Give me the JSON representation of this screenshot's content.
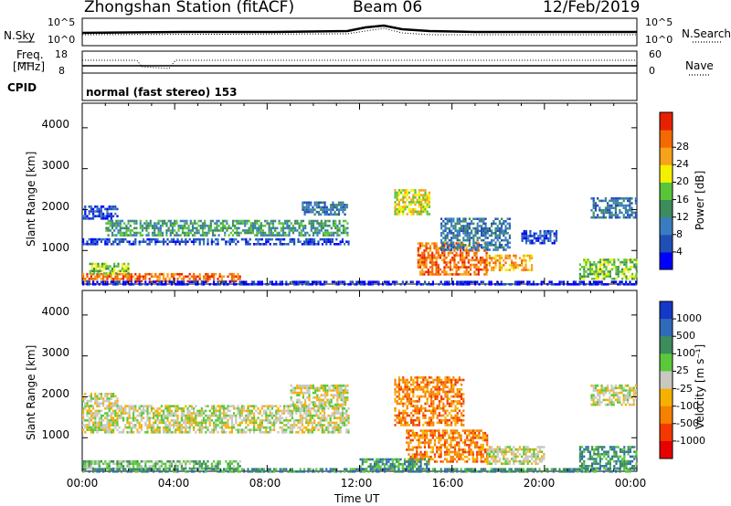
{
  "header": {
    "station": "Zhongshan Station (fitACF)",
    "beam": "Beam 06",
    "date": "12/Feb/2019"
  },
  "top_panels": {
    "nsky_label": "N.Sky",
    "nsky_ticks": [
      "10^5",
      "10^0"
    ],
    "nsearch_label": "N.Search",
    "nsearch_ticks": [
      "10^5",
      "10^0"
    ],
    "freq_label": "Freq.",
    "freq_unit": "[MHz]",
    "freq_ticks": [
      "18",
      "8"
    ],
    "nave_label": "Nave",
    "nave_ticks": [
      "60",
      "0"
    ],
    "cpid_label": "CPID",
    "cpid_text": "normal (fast stereo) 153"
  },
  "chart_data": [
    {
      "type": "heatmap",
      "name": "power-panel",
      "xlabel": "",
      "ylabel": "Slant Range [km]",
      "x_ticks": [
        "00:00",
        "04:00",
        "08:00",
        "12:00",
        "16:00",
        "20:00",
        "00:00"
      ],
      "y_ticks": [
        1000,
        2000,
        3000,
        4000
      ],
      "xlim": [
        0,
        24
      ],
      "ylim": [
        180,
        4600
      ],
      "colorbar": {
        "label": "Power [dB]",
        "ticks": [
          "4",
          "8",
          "12",
          "16",
          "20",
          "24",
          "28"
        ],
        "colors": [
          "#0000ff",
          "#1f4fb5",
          "#3a7cc0",
          "#3c8c5c",
          "#58c43a",
          "#f5f000",
          "#f6a21a",
          "#f46a00",
          "#e82000"
        ]
      },
      "regions": [
        {
          "t": [
            0.0,
            6.8
          ],
          "r": [
            250,
            450
          ],
          "level": 7
        },
        {
          "t": [
            0.3,
            2.0
          ],
          "r": [
            450,
            700
          ],
          "level": 4
        },
        {
          "t": [
            0.0,
            11.5
          ],
          "r": [
            1150,
            1300
          ],
          "level": 1
        },
        {
          "t": [
            1.0,
            11.5
          ],
          "r": [
            1400,
            1750
          ],
          "level": 3
        },
        {
          "t": [
            0.0,
            1.5
          ],
          "r": [
            1800,
            2100
          ],
          "level": 1
        },
        {
          "t": [
            9.5,
            11.5
          ],
          "r": [
            1900,
            2200
          ],
          "level": 2
        },
        {
          "t": [
            13.5,
            15.0
          ],
          "r": [
            1900,
            2500
          ],
          "level": 5
        },
        {
          "t": [
            14.5,
            17.5
          ],
          "r": [
            400,
            1200
          ],
          "level": 7
        },
        {
          "t": [
            15.5,
            18.5
          ],
          "r": [
            1000,
            1800
          ],
          "level": 2
        },
        {
          "t": [
            17.5,
            19.5
          ],
          "r": [
            500,
            900
          ],
          "level": 6
        },
        {
          "t": [
            19.0,
            20.5
          ],
          "r": [
            1200,
            1500
          ],
          "level": 1
        },
        {
          "t": [
            21.5,
            24.0
          ],
          "r": [
            300,
            800
          ],
          "level": 4
        },
        {
          "t": [
            22.0,
            24.0
          ],
          "r": [
            1800,
            2300
          ],
          "level": 2
        },
        {
          "t": [
            0.0,
            24.0
          ],
          "r": [
            180,
            260
          ],
          "level": 0
        }
      ]
    },
    {
      "type": "heatmap",
      "name": "velocity-panel",
      "xlabel": "Time UT",
      "ylabel": "Slant Range [km]",
      "x_ticks": [
        "00:00",
        "04:00",
        "08:00",
        "12:00",
        "16:00",
        "20:00",
        "00:00"
      ],
      "y_ticks": [
        1000,
        2000,
        3000,
        4000
      ],
      "xlim": [
        0,
        24
      ],
      "ylim": [
        180,
        4600
      ],
      "colorbar": {
        "label": "Velocity [m s⁻¹]",
        "ticks": [
          "1000",
          "500",
          "100",
          "25",
          "-25",
          "-100",
          "-500",
          "-1000"
        ],
        "colors": [
          "#1538c8",
          "#2f6bb8",
          "#3c8c5c",
          "#5ac83a",
          "#c8c8c0",
          "#f6b000",
          "#f68000",
          "#f43800",
          "#e80000"
        ]
      },
      "regions": [
        {
          "t": [
            0.0,
            6.8
          ],
          "r": [
            250,
            450
          ],
          "level": 3
        },
        {
          "t": [
            0.0,
            11.5
          ],
          "r": [
            1150,
            1800
          ],
          "level": 4
        },
        {
          "t": [
            0.0,
            1.5
          ],
          "r": [
            1800,
            2100
          ],
          "level": 4
        },
        {
          "t": [
            9.0,
            11.5
          ],
          "r": [
            1800,
            2300
          ],
          "level": 4
        },
        {
          "t": [
            13.5,
            16.5
          ],
          "r": [
            1300,
            2500
          ],
          "level": 6
        },
        {
          "t": [
            14.0,
            17.5
          ],
          "r": [
            400,
            1200
          ],
          "level": 6
        },
        {
          "t": [
            17.5,
            20.0
          ],
          "r": [
            350,
            800
          ],
          "level": 4
        },
        {
          "t": [
            12.0,
            15.0
          ],
          "r": [
            250,
            500
          ],
          "level": 2
        },
        {
          "t": [
            21.5,
            24.0
          ],
          "r": [
            250,
            800
          ],
          "level": 2
        },
        {
          "t": [
            22.0,
            24.0
          ],
          "r": [
            1800,
            2300
          ],
          "level": 4
        },
        {
          "t": [
            0.0,
            24.0
          ],
          "r": [
            180,
            260
          ],
          "level": 2
        }
      ]
    }
  ]
}
